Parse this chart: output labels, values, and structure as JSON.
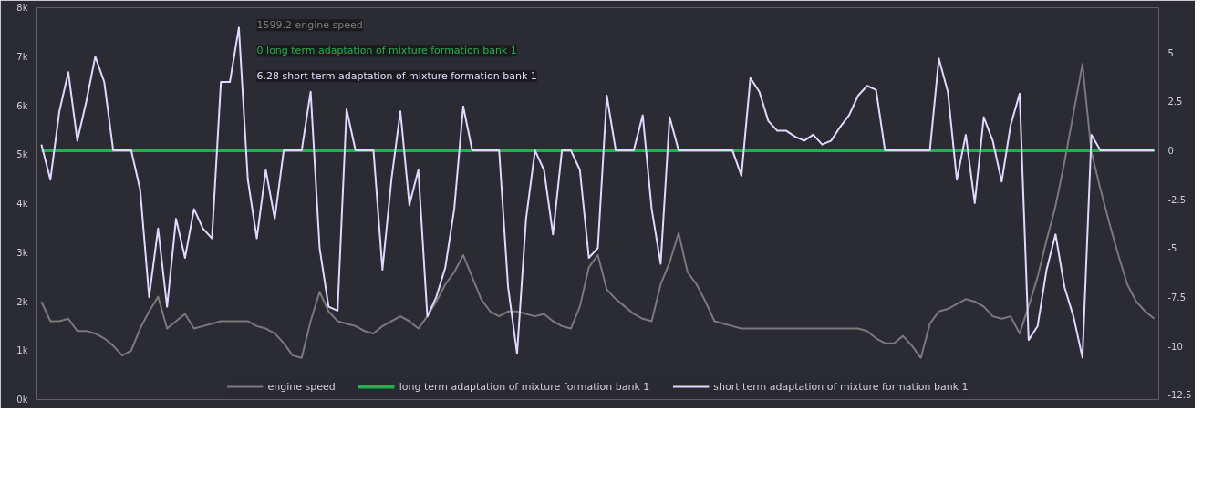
{
  "chart_data": {
    "type": "line",
    "categories": [
      null,
      null,
      null,
      null,
      null,
      null,
      null,
      null,
      null,
      null,
      null,
      null,
      null,
      null,
      null,
      null,
      null,
      null,
      null,
      null,
      null,
      null,
      null,
      null,
      null,
      null,
      null,
      null,
      null,
      null,
      null,
      null,
      null,
      null,
      null,
      null,
      null,
      null,
      null,
      null,
      null,
      null,
      null,
      null,
      null,
      null,
      null,
      null,
      null,
      null,
      null,
      null,
      null,
      null,
      null,
      null,
      null,
      null,
      null,
      null,
      null,
      null,
      null,
      null,
      null,
      null,
      null,
      null,
      null,
      null,
      null,
      null,
      null,
      null,
      null,
      null,
      null,
      null,
      null,
      null,
      null,
      null,
      null,
      null,
      null,
      null,
      null,
      null,
      null,
      null,
      null,
      null,
      null,
      null,
      null,
      null,
      null,
      null,
      null,
      null,
      null,
      null,
      null,
      null,
      null,
      null,
      null,
      null,
      null,
      null,
      null,
      null,
      null,
      null,
      null,
      null,
      null,
      null,
      null,
      null,
      null,
      null,
      null,
      null,
      null
    ],
    "series": [
      {
        "name": "engine speed",
        "color": "#7a7a7a",
        "values": [
          2000,
          1600,
          1600,
          1650,
          1400,
          1400,
          1350,
          1250,
          1100,
          900,
          1000,
          1450,
          1800,
          2100,
          1450,
          1600,
          1750,
          1450,
          1500,
          1550,
          1600,
          1600,
          1600,
          1600,
          1500,
          1450,
          1350,
          1150,
          900,
          850,
          1600,
          2200,
          1800,
          1600,
          1550,
          1500,
          1400,
          1350,
          1500,
          1600,
          1700,
          1600,
          1450,
          1700,
          2000,
          2350,
          2600,
          2950,
          2500,
          2050,
          1800,
          1700,
          1800,
          1800,
          1750,
          1700,
          1750,
          1600,
          1500,
          1450,
          1900,
          2700,
          2950,
          2250,
          2050,
          1900,
          1750,
          1650,
          1600,
          2350,
          2800,
          3400,
          2600,
          2350,
          2000,
          1600,
          1550,
          1500,
          1450,
          1450,
          1450,
          1450,
          1450,
          1450,
          1450,
          1450,
          1450,
          1450,
          1450,
          1450,
          1450,
          1450,
          1400,
          1250,
          1150,
          1150,
          1300,
          1100,
          850,
          1550,
          1800,
          1850,
          1950,
          2050,
          2000,
          1900,
          1700,
          1650,
          1700,
          1350,
          1900,
          2500,
          3250,
          3950,
          4850,
          5850,
          6850,
          5050,
          4300,
          3600,
          2950,
          2350,
          2000,
          1800,
          1650
        ]
      },
      {
        "name": "long term adaptation of mixture formation bank 1",
        "color": "#22b14c",
        "axis": "y2",
        "values": [
          0,
          0,
          0,
          0,
          0,
          0,
          0,
          0,
          0,
          0,
          0,
          0,
          0,
          0,
          0,
          0,
          0,
          0,
          0,
          0,
          0,
          0,
          0,
          0,
          0,
          0,
          0,
          0,
          0,
          0,
          0,
          0,
          0,
          0,
          0,
          0,
          0,
          0,
          0,
          0,
          0,
          0,
          0,
          0,
          0,
          0,
          0,
          0,
          0,
          0,
          0,
          0,
          0,
          0,
          0,
          0,
          0,
          0,
          0,
          0,
          0,
          0,
          0,
          0,
          0,
          0,
          0,
          0,
          0,
          0,
          0,
          0,
          0,
          0,
          0,
          0,
          0,
          0,
          0,
          0,
          0,
          0,
          0,
          0,
          0,
          0,
          0,
          0,
          0,
          0,
          0,
          0,
          0,
          0,
          0,
          0,
          0,
          0,
          0,
          0,
          0,
          0,
          0,
          0,
          0,
          0,
          0,
          0,
          0,
          0,
          0,
          0,
          0,
          0,
          0,
          0,
          0,
          0,
          0,
          0,
          0,
          0,
          0,
          0,
          0
        ]
      },
      {
        "name": "short term adaptation of mixture formation bank 1",
        "color": "#e0d8ff",
        "axis": "y2",
        "values": [
          0.3,
          -1.5,
          2.0,
          4.0,
          0.5,
          2.5,
          4.8,
          3.5,
          0,
          0,
          0,
          -2,
          -7.5,
          -4,
          -8,
          -3.5,
          -5.5,
          -3,
          -4,
          -4.5,
          3.5,
          3.5,
          6.28,
          -1.5,
          -4.5,
          -1,
          -3.5,
          0,
          0,
          0,
          3.0,
          -5,
          -8,
          -8.2,
          2.1,
          0,
          0,
          0,
          -6.1,
          -1.5,
          2.0,
          -2.8,
          -1,
          -8.5,
          -7.5,
          -6,
          -3,
          2.25,
          0,
          0,
          0,
          0,
          -7,
          -10.4,
          -3.5,
          0,
          -1,
          -4.3,
          0,
          0,
          -1,
          -5.5,
          -5,
          2.8,
          0,
          0,
          0,
          1.8,
          -3,
          -5.8,
          1.7,
          0,
          0,
          0,
          0,
          0,
          0,
          0,
          -1.3,
          3.7,
          3.0,
          1.5,
          1.0,
          1.0,
          0.7,
          0.5,
          0.8,
          0.3,
          0.5,
          1.2,
          1.8,
          2.8,
          3.3,
          3.1,
          0,
          0,
          0,
          0,
          0,
          0,
          4.7,
          3.0,
          -1.5,
          0.8,
          -2.7,
          1.7,
          0.5,
          -1.6,
          1.3,
          2.9,
          -9.7,
          -9,
          -6.1,
          -4.3,
          -7,
          -8.5,
          -10.6,
          0.8,
          0,
          0,
          0,
          0,
          0,
          0,
          0
        ]
      }
    ],
    "ylim": [
      0,
      8000
    ],
    "yticks": [
      {
        "value": 0,
        "label": "0k"
      },
      {
        "value": 1000,
        "label": "1k"
      },
      {
        "value": 2000,
        "label": "2k"
      },
      {
        "value": 3000,
        "label": "3k"
      },
      {
        "value": 4000,
        "label": "4k"
      },
      {
        "value": 5000,
        "label": "5k"
      },
      {
        "value": 6000,
        "label": "6k"
      },
      {
        "value": 7000,
        "label": "7k"
      },
      {
        "value": 8000,
        "label": "8k"
      }
    ],
    "y2lim": [
      -12.75,
      7.3
    ],
    "y2ticks": [
      5,
      2.5,
      0,
      -2.5,
      -5,
      -7.5,
      -10,
      -12.5
    ],
    "annotations": [
      "1599.2 engine speed",
      "0 long term adaptation of mixture formation bank 1",
      "6.28 short term adaptation of mixture formation bank 1"
    ],
    "legend": "bottom",
    "grid": false,
    "tick_labels": "y",
    "line_style": "solid",
    "marker": "none"
  }
}
